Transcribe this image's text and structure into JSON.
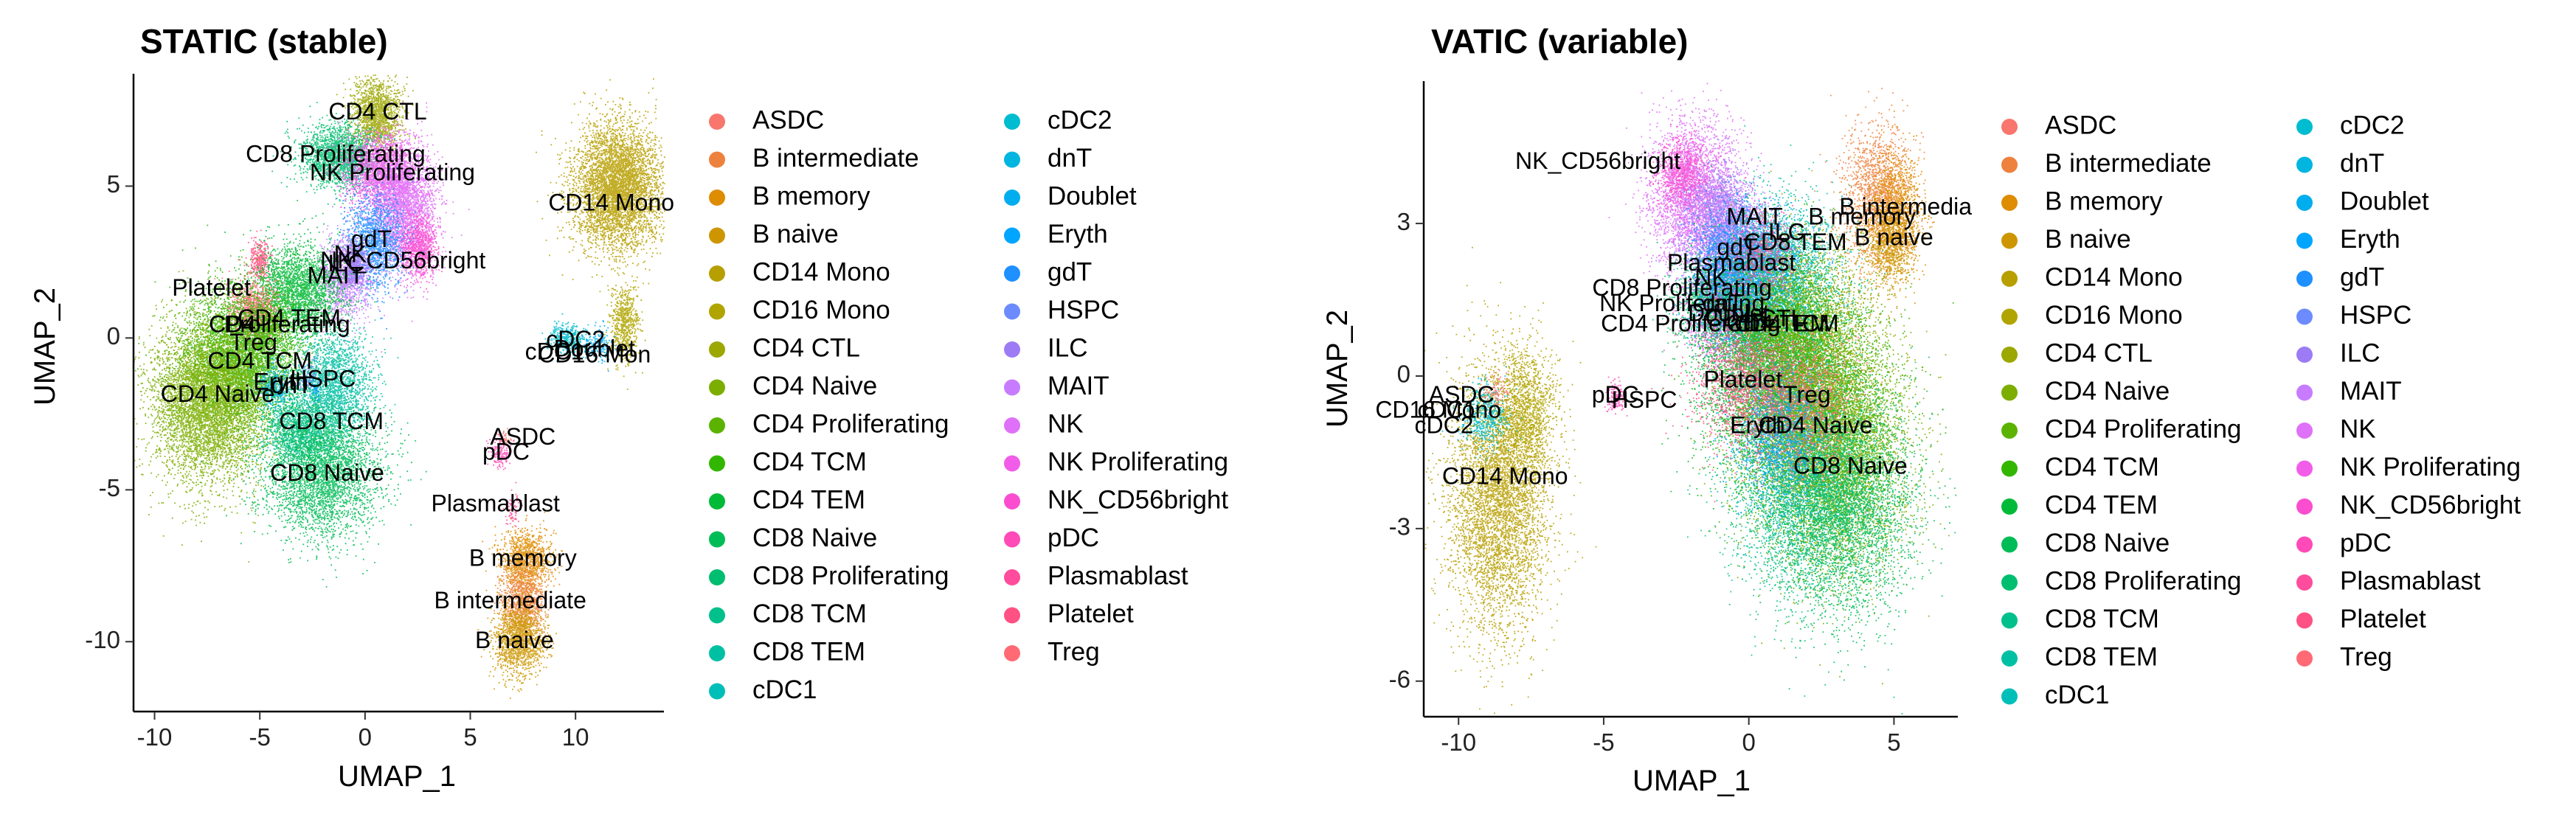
{
  "chart_data": [
    {
      "type": "scatter",
      "title": "STATIC (stable)",
      "xlabel": "UMAP_1",
      "ylabel": "UMAP_2",
      "xlim": [
        -11.0,
        14.2
      ],
      "ylim": [
        -12.3,
        8.7
      ],
      "xticks": [
        -10,
        -5,
        0,
        5,
        10
      ],
      "yticks": [
        -10,
        -5,
        0,
        5
      ],
      "grid": false,
      "legend": "right",
      "clusters": [
        {
          "name": "CD4 CTL",
          "x": 0.5,
          "y": 7.4,
          "sx": 0.7,
          "sy": 0.7,
          "n": 1600
        },
        {
          "name": "CD8 Proliferating",
          "x": -1.2,
          "y": 6.0,
          "sx": 1.1,
          "sy": 0.6,
          "n": 2000
        },
        {
          "name": "NK Proliferating",
          "x": 0.7,
          "y": 5.5,
          "sx": 1.0,
          "sy": 0.7,
          "n": 2000
        },
        {
          "name": "NK",
          "x": 1.8,
          "y": 4.3,
          "sx": 0.9,
          "sy": 1.2,
          "n": 3000
        },
        {
          "name": "NK_CD56bright",
          "x": 2.6,
          "y": 3.0,
          "sx": 0.5,
          "sy": 0.6,
          "n": 800
        },
        {
          "name": "gdT",
          "x": 0.4,
          "y": 3.2,
          "sx": 0.8,
          "sy": 0.9,
          "n": 1500
        },
        {
          "name": "MAIT",
          "x": -1.0,
          "y": 2.0,
          "sx": 0.7,
          "sy": 0.8,
          "n": 1200
        },
        {
          "name": "ILC",
          "x": -0.5,
          "y": 2.4,
          "sx": 0.4,
          "sy": 0.4,
          "n": 400
        },
        {
          "name": "Platelet",
          "x": -5.0,
          "y": 2.6,
          "sx": 0.3,
          "sy": 0.4,
          "n": 350
        },
        {
          "name": "CD4 TEM",
          "x": -3.2,
          "y": 1.6,
          "sx": 1.2,
          "sy": 0.9,
          "n": 2500
        },
        {
          "name": "Treg",
          "x": -5.3,
          "y": 0.9,
          "sx": 0.7,
          "sy": 0.6,
          "n": 1000
        },
        {
          "name": "CD4 Proliferating",
          "x": -4.5,
          "y": 0.4,
          "sx": 0.5,
          "sy": 0.4,
          "n": 400
        },
        {
          "name": "CD4 TCM",
          "x": -5.8,
          "y": -0.6,
          "sx": 1.6,
          "sy": 1.3,
          "n": 5000
        },
        {
          "name": "CD4 Naive",
          "x": -7.4,
          "y": -2.1,
          "sx": 1.6,
          "sy": 1.5,
          "n": 6000
        },
        {
          "name": "dnT",
          "x": -4.3,
          "y": -1.6,
          "sx": 0.5,
          "sy": 0.4,
          "n": 400
        },
        {
          "name": "HSPC",
          "x": -2.7,
          "y": -1.3,
          "sx": 0.3,
          "sy": 0.3,
          "n": 150
        },
        {
          "name": "CD8 TEM",
          "x": -1.5,
          "y": -1.6,
          "sx": 1.1,
          "sy": 1.1,
          "n": 2200
        },
        {
          "name": "CD8 TCM",
          "x": -3.1,
          "y": -3.0,
          "sx": 1.0,
          "sy": 0.7,
          "n": 1500
        },
        {
          "name": "CD8 Naive",
          "x": -2.0,
          "y": -4.5,
          "sx": 1.6,
          "sy": 1.2,
          "n": 3500
        },
        {
          "name": "CD14 Mono",
          "x": 12.0,
          "y": 5.0,
          "sx": 1.2,
          "sy": 1.2,
          "n": 5000
        },
        {
          "name": "CD16 Mono",
          "x": 12.3,
          "y": 0.5,
          "sx": 0.4,
          "sy": 0.7,
          "n": 700
        },
        {
          "name": "cDC2",
          "x": 9.5,
          "y": 0.0,
          "sx": 0.5,
          "sy": 0.3,
          "n": 300
        },
        {
          "name": "cDC1",
          "x": 9.9,
          "y": -0.2,
          "sx": 0.3,
          "sy": 0.2,
          "n": 100
        },
        {
          "name": "Doublet",
          "x": 11.0,
          "y": -0.2,
          "sx": 0.5,
          "sy": 0.3,
          "n": 200
        },
        {
          "name": "ASDC",
          "x": 6.6,
          "y": -3.3,
          "sx": 0.2,
          "sy": 0.2,
          "n": 60
        },
        {
          "name": "pDC",
          "x": 6.4,
          "y": -3.8,
          "sx": 0.3,
          "sy": 0.3,
          "n": 150
        },
        {
          "name": "Plasmablast",
          "x": 7.0,
          "y": -5.6,
          "sx": 0.2,
          "sy": 0.3,
          "n": 80
        },
        {
          "name": "B memory",
          "x": 7.6,
          "y": -7.3,
          "sx": 0.7,
          "sy": 0.6,
          "n": 1200
        },
        {
          "name": "B intermediate",
          "x": 7.5,
          "y": -8.6,
          "sx": 0.6,
          "sy": 0.6,
          "n": 1000
        },
        {
          "name": "B naive",
          "x": 7.3,
          "y": -9.9,
          "sx": 0.7,
          "sy": 0.7,
          "n": 1500
        },
        {
          "name": "Eryth",
          "x": -2.4,
          "y": -1.7,
          "sx": 0.2,
          "sy": 0.2,
          "n": 30
        }
      ],
      "labels": [
        {
          "text": "CD4 CTL",
          "x": 0.6,
          "y": 7.4
        },
        {
          "text": "CD8 Proliferating",
          "x": -1.4,
          "y": 6.0
        },
        {
          "text": "NK Proliferating",
          "x": 1.3,
          "y": 5.4
        },
        {
          "text": "CD14 Mono",
          "x": 11.7,
          "y": 4.4
        },
        {
          "text": "gdT",
          "x": 0.3,
          "y": 3.2
        },
        {
          "text": "NK_CD56bright",
          "x": 1.8,
          "y": 2.5
        },
        {
          "text": "NK",
          "x": -0.7,
          "y": 2.7
        },
        {
          "text": "MAIT",
          "x": -1.4,
          "y": 2.0
        },
        {
          "text": "ILC",
          "x": -0.9,
          "y": 2.4
        },
        {
          "text": "Platelet",
          "x": -7.3,
          "y": 1.6
        },
        {
          "text": "CD4 TEM",
          "x": -3.6,
          "y": 0.6
        },
        {
          "text": "Proliferating",
          "x": -3.7,
          "y": 0.4
        },
        {
          "text": "CD4",
          "x": -6.3,
          "y": 0.4
        },
        {
          "text": "Treg",
          "x": -5.3,
          "y": -0.2
        },
        {
          "text": "cDC2",
          "x": 10.0,
          "y": -0.1
        },
        {
          "text": "cDC1",
          "x": 9.0,
          "y": -0.5
        },
        {
          "text": "CD16 Mon",
          "x": 10.9,
          "y": -0.6
        },
        {
          "text": "Doublet",
          "x": 10.9,
          "y": -0.4
        },
        {
          "text": "CD4 TCM",
          "x": -5.0,
          "y": -0.8
        },
        {
          "text": "HSPC",
          "x": -2.0,
          "y": -1.4
        },
        {
          "text": "dnT",
          "x": -3.5,
          "y": -1.6
        },
        {
          "text": "Eryth",
          "x": -4.0,
          "y": -1.5
        },
        {
          "text": "CD4 Naive",
          "x": -7.0,
          "y": -1.9
        },
        {
          "text": "CD8 TCM",
          "x": -1.6,
          "y": -2.8
        },
        {
          "text": "ASDC",
          "x": 7.5,
          "y": -3.3
        },
        {
          "text": "pDC",
          "x": 6.7,
          "y": -3.8
        },
        {
          "text": "CD8 Naive",
          "x": -1.8,
          "y": -4.5
        },
        {
          "text": "Plasmablast",
          "x": 6.2,
          "y": -5.5
        },
        {
          "text": "B memory",
          "x": 7.5,
          "y": -7.3
        },
        {
          "text": "B intermediate",
          "x": 6.9,
          "y": -8.7
        },
        {
          "text": "B naive",
          "x": 7.1,
          "y": -10.0
        }
      ]
    },
    {
      "type": "scatter",
      "title": "VATIC (variable)",
      "xlabel": "UMAP_1",
      "ylabel": "UMAP_2",
      "xlim": [
        -11.2,
        7.2
      ],
      "ylim": [
        -6.7,
        5.8
      ],
      "xticks": [
        -10,
        -5,
        0,
        5
      ],
      "yticks": [
        -6,
        -3,
        0,
        3
      ],
      "grid": false,
      "legend": "right",
      "clusters": [
        {
          "name": "NK",
          "x": -1.9,
          "y": 3.5,
          "sx": 0.9,
          "sy": 0.9,
          "n": 3000
        },
        {
          "name": "NK_CD56bright",
          "x": -2.3,
          "y": 4.0,
          "sx": 0.5,
          "sy": 0.4,
          "n": 800
        },
        {
          "name": "ILC",
          "x": -1.0,
          "y": 3.3,
          "sx": 0.6,
          "sy": 0.5,
          "n": 800
        },
        {
          "name": "MAIT",
          "x": -0.8,
          "y": 2.9,
          "sx": 0.8,
          "sy": 0.6,
          "n": 1500
        },
        {
          "name": "HSPC",
          "x": -0.3,
          "y": 2.3,
          "sx": 1.0,
          "sy": 0.6,
          "n": 1500
        },
        {
          "name": "CD8 Proliferating",
          "x": -1.3,
          "y": 1.5,
          "sx": 0.8,
          "sy": 0.5,
          "n": 1200
        },
        {
          "name": "NK Proliferating",
          "x": -1.0,
          "y": 1.2,
          "sx": 0.7,
          "sy": 0.5,
          "n": 1000
        },
        {
          "name": "dnT",
          "x": -0.2,
          "y": 1.2,
          "sx": 0.9,
          "sy": 0.6,
          "n": 1000
        },
        {
          "name": "gdT",
          "x": -0.6,
          "y": 2.2,
          "sx": 0.8,
          "sy": 0.7,
          "n": 1400
        },
        {
          "name": "CD8 TEM",
          "x": 1.2,
          "y": 1.8,
          "sx": 1.2,
          "sy": 1.0,
          "n": 3000
        },
        {
          "name": "Doublet",
          "x": 0.4,
          "y": 2.0,
          "sx": 0.9,
          "sy": 0.7,
          "n": 1500
        },
        {
          "name": "CD4 CTL",
          "x": 1.9,
          "y": 0.7,
          "sx": 1.4,
          "sy": 1.1,
          "n": 3000
        },
        {
          "name": "CD4 TEM",
          "x": 0.5,
          "y": 0.3,
          "sx": 1.4,
          "sy": 1.2,
          "n": 4000
        },
        {
          "name": "CD4 TCM",
          "x": 2.0,
          "y": -0.5,
          "sx": 1.6,
          "sy": 1.3,
          "n": 5500
        },
        {
          "name": "CD4 Proliferating",
          "x": 0.9,
          "y": 0.9,
          "sx": 0.8,
          "sy": 0.6,
          "n": 1000
        },
        {
          "name": "CD4 Naive",
          "x": 2.9,
          "y": -1.5,
          "sx": 1.5,
          "sy": 1.4,
          "n": 5500
        },
        {
          "name": "CD8 Naive",
          "x": 3.3,
          "y": -2.5,
          "sx": 1.4,
          "sy": 1.3,
          "n": 4000
        },
        {
          "name": "CD8 TCM",
          "x": 1.5,
          "y": -2.2,
          "sx": 1.2,
          "sy": 1.2,
          "n": 2500
        },
        {
          "name": "Treg",
          "x": 1.8,
          "y": -0.6,
          "sx": 1.0,
          "sy": 0.8,
          "n": 1500
        },
        {
          "name": "Eryth",
          "x": 1.0,
          "y": -1.2,
          "sx": 0.9,
          "sy": 0.8,
          "n": 1200
        },
        {
          "name": "Platelet",
          "x": -0.2,
          "y": -0.1,
          "sx": 1.0,
          "sy": 0.8,
          "n": 1500
        },
        {
          "name": "B intermediate",
          "x": 4.4,
          "y": 3.6,
          "sx": 0.7,
          "sy": 0.8,
          "n": 1500
        },
        {
          "name": "B memory",
          "x": 5.1,
          "y": 3.2,
          "sx": 0.5,
          "sy": 0.7,
          "n": 1200
        },
        {
          "name": "B naive",
          "x": 4.8,
          "y": 2.6,
          "sx": 0.5,
          "sy": 0.5,
          "n": 800
        },
        {
          "name": "Plasmablast",
          "x": 0.4,
          "y": 2.4,
          "sx": 0.7,
          "sy": 0.5,
          "n": 600
        },
        {
          "name": "CD14 Mono",
          "x": -8.6,
          "y": -2.4,
          "sx": 1.0,
          "sy": 1.5,
          "n": 5000
        },
        {
          "name": "CD16 Mono",
          "x": -7.7,
          "y": -0.7,
          "sx": 0.6,
          "sy": 0.7,
          "n": 1200
        },
        {
          "name": "cDC1",
          "x": -9.0,
          "y": -0.6,
          "sx": 0.4,
          "sy": 0.3,
          "n": 200
        },
        {
          "name": "cDC2",
          "x": -9.1,
          "y": -0.9,
          "sx": 0.5,
          "sy": 0.3,
          "n": 300
        },
        {
          "name": "ASDC",
          "x": -8.7,
          "y": -0.3,
          "sx": 0.3,
          "sy": 0.2,
          "n": 100
        },
        {
          "name": "pDC",
          "x": -4.6,
          "y": -0.4,
          "sx": 0.2,
          "sy": 0.2,
          "n": 150
        }
      ],
      "labels": [
        {
          "text": "NK_CD56bright",
          "x": -5.2,
          "y": 4.2
        },
        {
          "text": "B intermedia",
          "x": 5.4,
          "y": 3.3
        },
        {
          "text": "B memory",
          "x": 3.9,
          "y": 3.1
        },
        {
          "text": "MAIT",
          "x": 0.2,
          "y": 3.1
        },
        {
          "text": "B naive",
          "x": 5.0,
          "y": 2.7
        },
        {
          "text": "ILC",
          "x": 1.3,
          "y": 2.8
        },
        {
          "text": "CD8 TEM",
          "x": 1.6,
          "y": 2.6
        },
        {
          "text": "gdT",
          "x": -0.4,
          "y": 2.5
        },
        {
          "text": "Plasmablast",
          "x": -0.6,
          "y": 2.2
        },
        {
          "text": "NK",
          "x": -1.3,
          "y": 1.9
        },
        {
          "text": "CD8 Proliferating",
          "x": -2.3,
          "y": 1.7
        },
        {
          "text": "NK Proliferating",
          "x": -2.3,
          "y": 1.4
        },
        {
          "text": "dnT",
          "x": -0.9,
          "y": 1.4
        },
        {
          "text": "Doublet",
          "x": -0.7,
          "y": 1.2
        },
        {
          "text": "CD4 Proliferating",
          "x": -2.0,
          "y": 1.0
        },
        {
          "text": "CD4 TEM",
          "x": 1.0,
          "y": 1.0
        },
        {
          "text": "CD4 TCM",
          "x": 1.3,
          "y": 1.0
        },
        {
          "text": "CD4 CTL",
          "x": 0.2,
          "y": 1.1
        },
        {
          "text": "Platelet",
          "x": -0.2,
          "y": -0.1
        },
        {
          "text": "Treg",
          "x": 2.0,
          "y": -0.4
        },
        {
          "text": "HSPC",
          "x": -3.6,
          "y": -0.5
        },
        {
          "text": "pDC",
          "x": -4.6,
          "y": -0.4
        },
        {
          "text": "ASDC",
          "x": -9.9,
          "y": -0.4
        },
        {
          "text": "cDC1",
          "x": -10.4,
          "y": -0.7
        },
        {
          "text": "CD16 Mono",
          "x": -10.7,
          "y": -0.7
        },
        {
          "text": "cDC2",
          "x": -10.5,
          "y": -1.0
        },
        {
          "text": "Eryth",
          "x": 0.3,
          "y": -1.0
        },
        {
          "text": "CD4 Naive",
          "x": 2.3,
          "y": -1.0
        },
        {
          "text": "CD8 Naive",
          "x": 3.5,
          "y": -1.8
        },
        {
          "text": "CD14 Mono",
          "x": -8.4,
          "y": -2.0
        }
      ]
    }
  ],
  "legend_items": [
    {
      "name": "ASDC",
      "color": "#F8766D"
    },
    {
      "name": "B intermediate",
      "color": "#ED813E"
    },
    {
      "name": "B memory",
      "color": "#DE8C00"
    },
    {
      "name": "B naive",
      "color": "#CD9600"
    },
    {
      "name": "CD14 Mono",
      "color": "#B79F00"
    },
    {
      "name": "CD16 Mono",
      "color": "#B0A500"
    },
    {
      "name": "CD4 CTL",
      "color": "#9CA700"
    },
    {
      "name": "CD4 Naive",
      "color": "#7CAE00"
    },
    {
      "name": "CD4 Proliferating",
      "color": "#5BB300"
    },
    {
      "name": "CD4 TCM",
      "color": "#33B600"
    },
    {
      "name": "CD4 TEM",
      "color": "#00BA38"
    },
    {
      "name": "CD8 Naive",
      "color": "#00BC57"
    },
    {
      "name": "CD8 Proliferating",
      "color": "#00BE70"
    },
    {
      "name": "CD8 TCM",
      "color": "#00C08B"
    },
    {
      "name": "CD8 TEM",
      "color": "#00C0A4"
    },
    {
      "name": "cDC1",
      "color": "#00BFB8"
    },
    {
      "name": "cDC2",
      "color": "#00BCD0"
    },
    {
      "name": "dnT",
      "color": "#00B5E0"
    },
    {
      "name": "Doublet",
      "color": "#00ADEF"
    },
    {
      "name": "Eryth",
      "color": "#00A5FF"
    },
    {
      "name": "gdT",
      "color": "#1E90FF"
    },
    {
      "name": "HSPC",
      "color": "#6B8BFF"
    },
    {
      "name": "ILC",
      "color": "#9C7BF5"
    },
    {
      "name": "MAIT",
      "color": "#C77CFF"
    },
    {
      "name": "NK",
      "color": "#DF70F8"
    },
    {
      "name": "NK Proliferating",
      "color": "#F15DE8"
    },
    {
      "name": "NK_CD56bright",
      "color": "#FB4DD0"
    },
    {
      "name": "pDC",
      "color": "#FF4AB8"
    },
    {
      "name": "Plasmablast",
      "color": "#FF4C9C"
    },
    {
      "name": "Platelet",
      "color": "#FF5183"
    },
    {
      "name": "Treg",
      "color": "#FF6A75"
    }
  ]
}
